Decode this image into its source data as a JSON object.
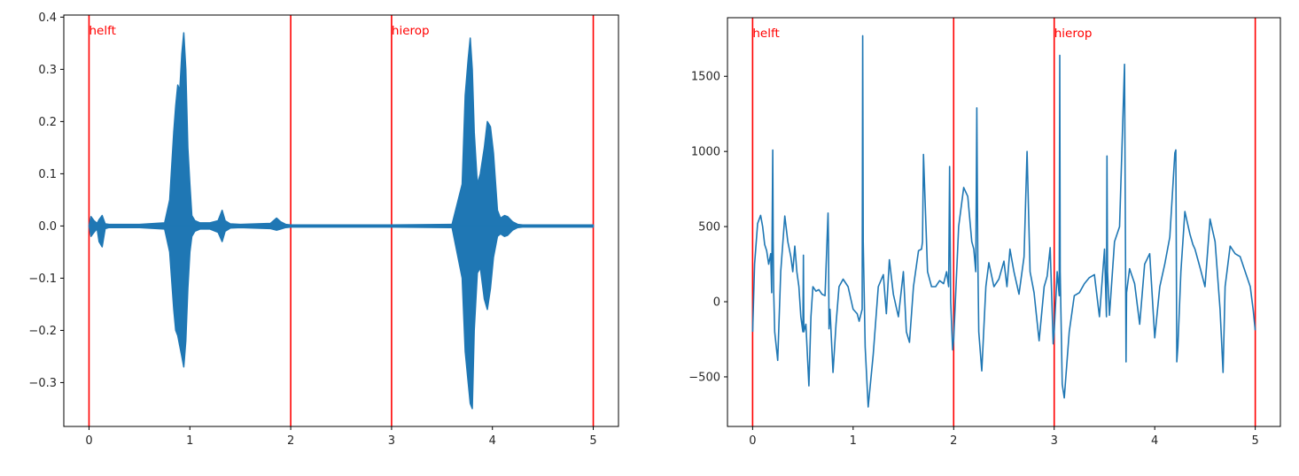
{
  "figure": {
    "background": "#ffffff",
    "line_color": "#1f77b4",
    "marker_color": "#ff0000",
    "axis_color": "#000000"
  },
  "chart_data": [
    {
      "type": "line",
      "title": "",
      "xlabel": "",
      "ylabel": "",
      "description": "Audio waveform amplitude over time (seconds) with red vertical segment markers",
      "xlim": [
        -0.25,
        5.25
      ],
      "ylim": [
        -0.384,
        0.404
      ],
      "xticks": [
        0,
        1,
        2,
        3,
        4,
        5
      ],
      "xtick_labels": [
        "0",
        "1",
        "2",
        "3",
        "4",
        "5"
      ],
      "yticks": [
        0.4,
        0.3,
        0.2,
        0.1,
        0.0,
        -0.1,
        -0.2,
        -0.3
      ],
      "ytick_labels": [
        "0.4",
        "0.3",
        "0.2",
        "0.1",
        "0.0",
        "−0.1",
        "−0.2",
        "−0.3"
      ],
      "grid": false,
      "legend": null,
      "vlines": [
        0,
        2,
        3,
        5
      ],
      "annotations": [
        {
          "x": 0,
          "text": "helft"
        },
        {
          "x": 3,
          "text": "hierop"
        }
      ],
      "envelope": {
        "note": "Approximate upper/lower amplitude envelope of the dense waveform",
        "x": [
          0.0,
          0.02,
          0.05,
          0.08,
          0.1,
          0.13,
          0.16,
          0.2,
          0.5,
          0.75,
          0.8,
          0.84,
          0.86,
          0.88,
          0.9,
          0.92,
          0.94,
          0.96,
          0.98,
          1.0,
          1.02,
          1.05,
          1.1,
          1.2,
          1.28,
          1.32,
          1.35,
          1.4,
          1.5,
          1.8,
          1.86,
          1.9,
          1.95,
          2.0,
          3.0,
          3.6,
          3.7,
          3.73,
          3.76,
          3.78,
          3.8,
          3.82,
          3.85,
          3.88,
          3.92,
          3.95,
          3.98,
          4.01,
          4.05,
          4.08,
          4.12,
          4.15,
          4.2,
          4.25,
          4.3,
          5.0
        ],
        "upper": [
          0.0,
          0.018,
          0.01,
          0.005,
          0.012,
          0.02,
          0.004,
          0.003,
          0.003,
          0.006,
          0.05,
          0.18,
          0.23,
          0.27,
          0.26,
          0.33,
          0.37,
          0.3,
          0.15,
          0.08,
          0.02,
          0.01,
          0.006,
          0.006,
          0.01,
          0.03,
          0.01,
          0.004,
          0.003,
          0.005,
          0.015,
          0.008,
          0.003,
          0.002,
          0.002,
          0.003,
          0.08,
          0.25,
          0.32,
          0.36,
          0.3,
          0.18,
          0.08,
          0.1,
          0.15,
          0.2,
          0.19,
          0.14,
          0.03,
          0.015,
          0.02,
          0.018,
          0.008,
          0.003,
          0.002,
          0.002
        ],
        "lower": [
          0.0,
          -0.02,
          -0.012,
          -0.005,
          -0.03,
          -0.04,
          -0.005,
          -0.003,
          -0.003,
          -0.006,
          -0.05,
          -0.16,
          -0.2,
          -0.21,
          -0.23,
          -0.25,
          -0.27,
          -0.22,
          -0.12,
          -0.05,
          -0.02,
          -0.01,
          -0.006,
          -0.006,
          -0.012,
          -0.03,
          -0.01,
          -0.004,
          -0.003,
          -0.005,
          -0.008,
          -0.006,
          -0.003,
          -0.002,
          -0.002,
          -0.003,
          -0.1,
          -0.24,
          -0.3,
          -0.34,
          -0.35,
          -0.2,
          -0.09,
          -0.08,
          -0.14,
          -0.16,
          -0.12,
          -0.06,
          -0.02,
          -0.015,
          -0.02,
          -0.018,
          -0.008,
          -0.003,
          -0.002,
          -0.002
        ]
      }
    },
    {
      "type": "line",
      "title": "",
      "xlabel": "",
      "ylabel": "",
      "description": "Pitch/feature contour over time (seconds) with red vertical segment markers",
      "xlim": [
        -0.25,
        5.25
      ],
      "ylim": [
        -830,
        1890
      ],
      "xticks": [
        0,
        1,
        2,
        3,
        4,
        5
      ],
      "xtick_labels": [
        "0",
        "1",
        "2",
        "3",
        "4",
        "5"
      ],
      "yticks": [
        1500,
        1000,
        500,
        0,
        -500
      ],
      "ytick_labels": [
        "1500",
        "1000",
        "500",
        "0",
        "−500"
      ],
      "grid": false,
      "legend": null,
      "vlines": [
        0,
        2,
        3,
        5
      ],
      "annotations": [
        {
          "x": 0,
          "text": "helft"
        },
        {
          "x": 3,
          "text": "hierop"
        }
      ],
      "series": [
        {
          "name": "contour",
          "x": [
            0.0,
            0.02,
            0.05,
            0.08,
            0.1,
            0.12,
            0.14,
            0.16,
            0.18,
            0.19,
            0.2,
            0.205,
            0.21,
            0.22,
            0.25,
            0.28,
            0.32,
            0.35,
            0.38,
            0.4,
            0.42,
            0.44,
            0.46,
            0.48,
            0.5,
            0.505,
            0.51,
            0.53,
            0.56,
            0.58,
            0.6,
            0.63,
            0.66,
            0.69,
            0.72,
            0.75,
            0.755,
            0.76,
            0.77,
            0.8,
            0.83,
            0.86,
            0.9,
            0.95,
            1.0,
            1.04,
            1.06,
            1.09,
            1.095,
            1.1,
            1.12,
            1.15,
            1.2,
            1.25,
            1.3,
            1.33,
            1.36,
            1.4,
            1.45,
            1.5,
            1.53,
            1.56,
            1.6,
            1.65,
            1.68,
            1.69,
            1.7,
            1.74,
            1.78,
            1.82,
            1.86,
            1.9,
            1.93,
            1.95,
            1.96,
            1.97,
            1.99,
            2.0,
            2.05,
            2.1,
            2.14,
            2.18,
            2.2,
            2.22,
            2.23,
            2.24,
            2.25,
            2.28,
            2.32,
            2.35,
            2.4,
            2.45,
            2.5,
            2.53,
            2.56,
            2.6,
            2.65,
            2.7,
            2.73,
            2.76,
            2.8,
            2.85,
            2.9,
            2.93,
            2.96,
            2.99,
            3.0,
            3.03,
            3.05,
            3.055,
            3.06,
            3.08,
            3.1,
            3.15,
            3.2,
            3.25,
            3.3,
            3.35,
            3.4,
            3.45,
            3.5,
            3.52,
            3.525,
            3.53,
            3.55,
            3.6,
            3.65,
            3.7,
            3.71,
            3.715,
            3.72,
            3.75,
            3.8,
            3.85,
            3.9,
            3.95,
            4.0,
            4.05,
            4.1,
            4.15,
            4.2,
            4.21,
            4.22,
            4.23,
            4.26,
            4.3,
            4.35,
            4.38,
            4.4,
            4.45,
            4.5,
            4.55,
            4.6,
            4.65,
            4.68,
            4.7,
            4.75,
            4.8,
            4.85,
            4.9,
            4.95,
            4.98,
            5.0
          ],
          "y": [
            -200,
            250,
            520,
            575,
            500,
            380,
            340,
            250,
            320,
            60,
            1010,
            400,
            60,
            -200,
            -390,
            200,
            570,
            400,
            300,
            200,
            370,
            200,
            100,
            -100,
            -200,
            310,
            -200,
            -150,
            -560,
            -100,
            100,
            70,
            80,
            50,
            40,
            590,
            400,
            -180,
            -50,
            -470,
            -150,
            100,
            150,
            100,
            -50,
            -80,
            -130,
            -50,
            1770,
            400,
            -300,
            -700,
            -350,
            100,
            180,
            -80,
            280,
            50,
            -100,
            200,
            -200,
            -270,
            100,
            340,
            350,
            400,
            980,
            200,
            100,
            100,
            140,
            120,
            200,
            100,
            900,
            0,
            -320,
            -250,
            500,
            760,
            700,
            400,
            350,
            200,
            1290,
            300,
            -200,
            -460,
            100,
            260,
            100,
            150,
            270,
            100,
            350,
            200,
            50,
            300,
            1000,
            200,
            60,
            -260,
            100,
            170,
            360,
            -280,
            -200,
            200,
            40,
            1640,
            200,
            -550,
            -640,
            -200,
            40,
            60,
            120,
            160,
            180,
            -100,
            350,
            -100,
            970,
            200,
            -90,
            400,
            500,
            1580,
            200,
            -400,
            60,
            220,
            120,
            -150,
            250,
            320,
            -240,
            100,
            250,
            430,
            990,
            1010,
            -400,
            -300,
            200,
            600,
            450,
            380,
            350,
            230,
            100,
            550,
            400,
            -50,
            -470,
            100,
            370,
            320,
            300,
            200,
            100,
            -60,
            -190
          ]
        }
      ]
    }
  ]
}
